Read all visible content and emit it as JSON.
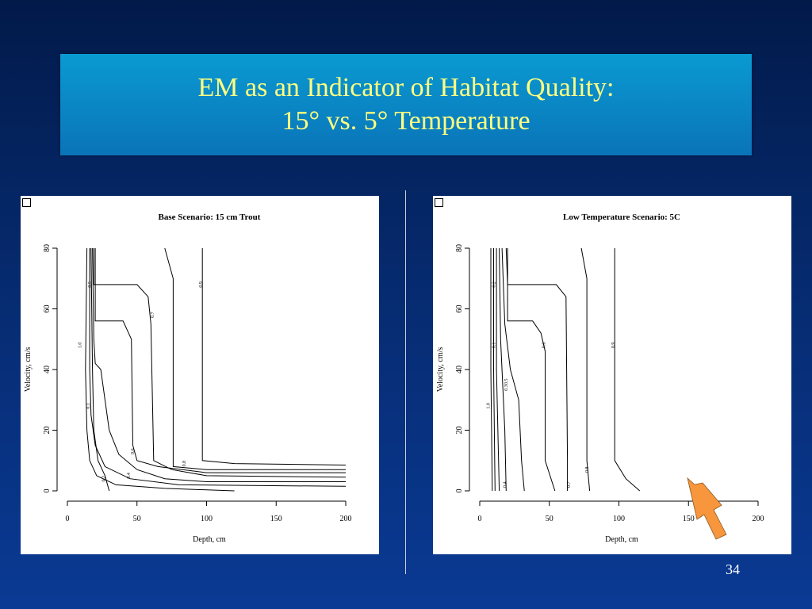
{
  "slide": {
    "title_line1": "EM as an Indicator of Habitat Quality:",
    "title_line2": "15° vs. 5° Temperature",
    "page_number": "34"
  },
  "colors": {
    "title_text": "#ffff80",
    "arrow": "#f7963c"
  },
  "chart_data": [
    {
      "type": "contour",
      "title": "Base Scenario: 15 cm Trout",
      "xlabel": "Depth, cm",
      "ylabel": "Velocity, cm/s",
      "xlim": [
        0,
        200
      ],
      "ylim": [
        0,
        80
      ],
      "xticks": [
        0,
        50,
        100,
        150,
        200
      ],
      "yticks": [
        0,
        20,
        40,
        60,
        80
      ],
      "contours": [
        {
          "level": "1.0",
          "points": [
            [
              14,
              80
            ],
            [
              13,
              40
            ],
            [
              14,
              20
            ],
            [
              16,
              10
            ],
            [
              21,
              5
            ],
            [
              35,
              2
            ],
            [
              70,
              0.8
            ],
            [
              120,
              0
            ]
          ],
          "label_at": [
            10,
            48
          ]
        },
        {
          "level": "0.1",
          "points": [
            [
              16,
              80
            ],
            [
              16,
              40
            ],
            [
              17,
              25
            ],
            [
              20,
              15
            ],
            [
              27,
              8
            ],
            [
              45,
              4
            ],
            [
              80,
              2
            ],
            [
              200,
              1.5
            ]
          ],
          "label_at": [
            16,
            28
          ]
        },
        {
          "level": "0.2",
          "points": [
            [
              17,
              80
            ],
            [
              18,
              40
            ],
            [
              19,
              20
            ],
            [
              22,
              10
            ],
            [
              27,
              5
            ],
            [
              30,
              0
            ]
          ],
          "label_at": [
            27,
            4
          ]
        },
        {
          "level": "0.4",
          "points": [
            [
              18,
              80
            ],
            [
              19,
              50
            ],
            [
              20,
              42
            ],
            [
              24,
              40
            ],
            [
              27,
              30
            ],
            [
              30,
              20
            ],
            [
              37,
              12
            ],
            [
              50,
              7
            ],
            [
              70,
              4
            ],
            [
              100,
              3
            ],
            [
              200,
              3
            ]
          ],
          "label_at": [
            45,
            5
          ]
        },
        {
          "level": "0.5",
          "points": [
            [
              19,
              80
            ],
            [
              19,
              68
            ],
            [
              50,
              68
            ],
            [
              58,
              64
            ],
            [
              60,
              55
            ],
            [
              62,
              10
            ],
            [
              75,
              7
            ],
            [
              100,
              5
            ],
            [
              200,
              4.5
            ]
          ],
          "label_at": [
            17,
            68
          ]
        },
        {
          "level": "0.6",
          "points": [
            [
              20,
              80
            ],
            [
              20,
              56
            ],
            [
              40,
              56
            ],
            [
              46,
              50
            ],
            [
              47,
              15
            ],
            [
              50,
              10
            ],
            [
              65,
              8
            ],
            [
              100,
              6
            ],
            [
              200,
              6
            ]
          ],
          "label_at": [
            48,
            13
          ]
        },
        {
          "level": "0.7",
          "points": [
            [
              70,
              80
            ],
            [
              76,
              70
            ],
            [
              76,
              8
            ],
            [
              100,
              7
            ],
            [
              200,
              7
            ]
          ],
          "label_at": [
            62,
            58
          ]
        },
        {
          "level": "0.8",
          "points": [],
          "label_at": [
            85,
            9
          ]
        },
        {
          "level": "0.9",
          "points": [
            [
              97,
              80
            ],
            [
              97,
              10
            ],
            [
              120,
              9
            ],
            [
              200,
              8.5
            ]
          ],
          "label_at": [
            97,
            68
          ]
        }
      ]
    },
    {
      "type": "contour",
      "title": "Low Temperature Scenario: 5C",
      "xlabel": "Depth, cm",
      "ylabel": "Velocity, cm/s",
      "xlim": [
        0,
        200
      ],
      "ylim": [
        0,
        80
      ],
      "xticks": [
        0,
        50,
        100,
        150,
        200
      ],
      "yticks": [
        0,
        20,
        40,
        60,
        80
      ],
      "contours": [
        {
          "level": "1.0",
          "points": [
            [
              8,
              80
            ],
            [
              8,
              40
            ],
            [
              9,
              0
            ]
          ],
          "label_at": [
            7,
            28
          ]
        },
        {
          "level": "0.1",
          "points": [
            [
              10,
              80
            ],
            [
              10,
              40
            ],
            [
              11,
              0
            ]
          ],
          "label_at": [
            11,
            48
          ]
        },
        {
          "level": "0.2",
          "points": [
            [
              12,
              80
            ],
            [
              12,
              40
            ],
            [
              14,
              0
            ]
          ],
          "label_at": [
            11,
            68
          ]
        },
        {
          "level": "0.4",
          "points": [
            [
              14,
              80
            ],
            [
              15,
              50
            ],
            [
              18,
              20
            ],
            [
              19,
              0
            ]
          ],
          "label_at": [
            19,
            2
          ]
        },
        {
          "level": "0.5",
          "points": [
            [
              16,
              80
            ],
            [
              18,
              55
            ],
            [
              22,
              40
            ],
            [
              28,
              30
            ],
            [
              30,
              10
            ],
            [
              32,
              0
            ]
          ],
          "label_at": [
            20,
            36
          ]
        },
        {
          "level": "0.3",
          "points": [
            [
              19,
              80
            ],
            [
              20,
              68
            ],
            [
              55,
              68
            ],
            [
              62,
              64
            ],
            [
              63,
              10
            ],
            [
              63,
              0
            ]
          ],
          "label_at": [
            20,
            34
          ]
        },
        {
          "level": "0.6",
          "points": [
            [
              20,
              80
            ],
            [
              20,
              56
            ],
            [
              38,
              56
            ],
            [
              44,
              52
            ],
            [
              47,
              46
            ],
            [
              47,
              10
            ],
            [
              54,
              0
            ]
          ],
          "label_at": [
            47,
            48
          ]
        },
        {
          "level": "0.7",
          "points": [
            [
              73,
              80
            ],
            [
              77,
              70
            ],
            [
              77,
              10
            ],
            [
              79,
              0
            ]
          ],
          "label_at": [
            65,
            2
          ]
        },
        {
          "level": "0.8",
          "points": [],
          "label_at": [
            78,
            7
          ]
        },
        {
          "level": "0.9",
          "points": [
            [
              97,
              80
            ],
            [
              97,
              10
            ],
            [
              105,
              4
            ],
            [
              115,
              0
            ]
          ],
          "label_at": [
            97,
            48
          ]
        }
      ]
    }
  ]
}
